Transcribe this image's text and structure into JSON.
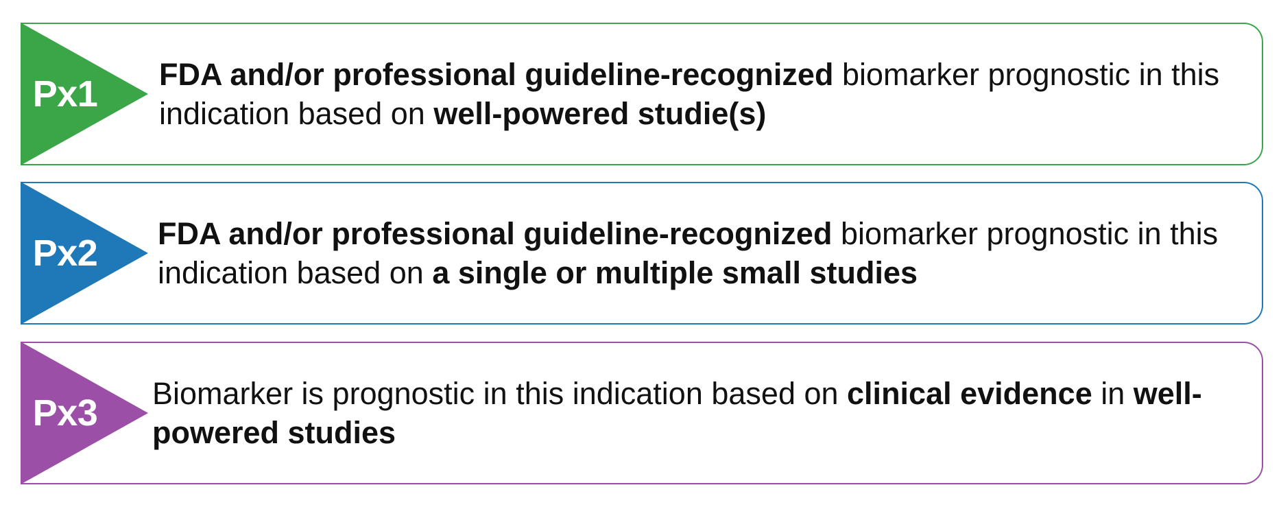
{
  "tiers": [
    {
      "code": "Px1",
      "color": "#3aa648",
      "segments": [
        {
          "text": "FDA and/or professional guideline-recognized",
          "bold": true
        },
        {
          "text": " biomarker prognostic in this indication based on ",
          "bold": false
        },
        {
          "text": "well-powered studie(s)",
          "bold": true
        }
      ]
    },
    {
      "code": "Px2",
      "color": "#1f78b8",
      "segments": [
        {
          "text": "FDA and/or professional guideline-recognized",
          "bold": true
        },
        {
          "text": " biomarker prognostic in this indication based on ",
          "bold": false
        },
        {
          "text": "a single or multiple small studies",
          "bold": true
        }
      ]
    },
    {
      "code": "Px3",
      "color": "#9b4fa6",
      "segments": [
        {
          "text": "Biomarker is prognostic in this indication based on ",
          "bold": false
        },
        {
          "text": "clinical evidence",
          "bold": true
        },
        {
          "text": " in ",
          "bold": false
        },
        {
          "text": "well-powered studies",
          "bold": true
        }
      ]
    }
  ]
}
